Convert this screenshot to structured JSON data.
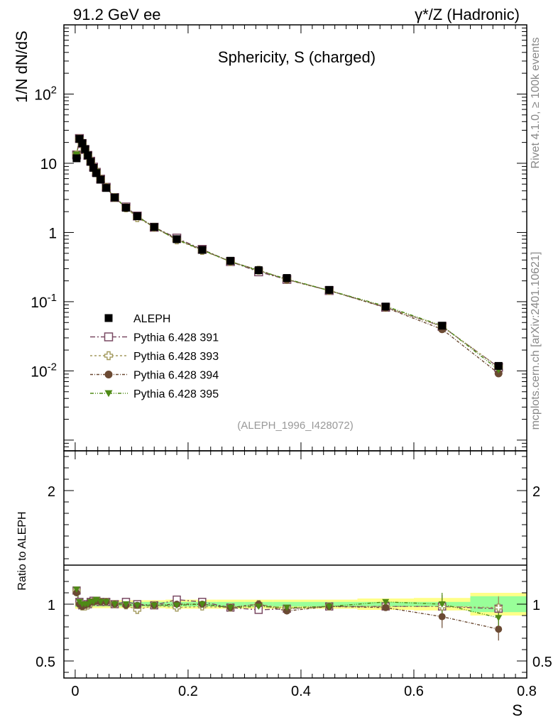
{
  "header": {
    "left": "91.2 GeV ee",
    "right": "γ*/Z (Hadronic)"
  },
  "side_labels": {
    "rivet": "Rivet 4.1.0, ≥ 100k events",
    "mcplots": "mcplots.cern.ch [arXiv:2401.10621]"
  },
  "colors": {
    "aleph": "#000000",
    "p391": "#7a4a63",
    "p393": "#a39a5e",
    "p394": "#6b4a33",
    "p395": "#4e8a16",
    "band_inner": "#99ff99",
    "band_outer": "#ffff88"
  },
  "chart_data": [
    {
      "type": "line",
      "title": "Sphericity, S (charged)",
      "ylabel": "1/N  dN/dS",
      "xlabel": "S",
      "yscale": "log",
      "xlim": [
        -0.02,
        0.8
      ],
      "ylim": [
        0.0007,
        1000
      ],
      "ytick_labels": [
        "10^-2",
        "10^-1",
        "1",
        "10",
        "10^2"
      ],
      "xtick_labels": [
        "0",
        "0.2",
        "0.4",
        "0.6",
        "0.8"
      ],
      "annotation": "(ALEPH_1996_I428072)",
      "legend_position": "bottom-left",
      "x": [
        0.0025,
        0.0075,
        0.0125,
        0.0175,
        0.0225,
        0.0275,
        0.0325,
        0.0375,
        0.045,
        0.055,
        0.07,
        0.09,
        0.11,
        0.14,
        0.18,
        0.225,
        0.275,
        0.325,
        0.375,
        0.45,
        0.55,
        0.65,
        0.75
      ],
      "series": [
        {
          "name": "ALEPH",
          "key": "aleph",
          "marker": "square-filled",
          "values": [
            11.8,
            22.5,
            19.5,
            16.0,
            13.0,
            10.5,
            8.6,
            7.2,
            5.8,
            4.4,
            3.2,
            2.28,
            1.72,
            1.2,
            0.8,
            0.56,
            0.39,
            0.285,
            0.22,
            0.148,
            0.085,
            0.045,
            0.0118
          ]
        },
        {
          "name": "Pythia 6.428 391",
          "key": "p391",
          "marker": "square-open",
          "values": [
            13.2,
            22.8,
            19.3,
            15.8,
            13.0,
            10.7,
            8.8,
            7.4,
            5.9,
            4.5,
            3.2,
            2.34,
            1.73,
            1.19,
            0.83,
            0.57,
            0.38,
            0.27,
            0.21,
            0.145,
            0.083,
            0.044,
            0.0113
          ]
        },
        {
          "name": "Pythia 6.428 393",
          "key": "p393",
          "marker": "cross-open",
          "values": [
            13.2,
            22.4,
            19.1,
            15.7,
            12.9,
            10.6,
            8.8,
            7.4,
            5.9,
            4.5,
            3.2,
            2.27,
            1.64,
            1.19,
            0.78,
            0.55,
            0.38,
            0.285,
            0.21,
            0.145,
            0.083,
            0.044,
            0.0114
          ]
        },
        {
          "name": "Pythia 6.428 394",
          "key": "p394",
          "marker": "circle-filled",
          "values": [
            13.0,
            22.6,
            19.2,
            15.8,
            13.0,
            10.7,
            8.8,
            7.4,
            5.9,
            4.5,
            3.2,
            2.27,
            1.71,
            1.19,
            0.8,
            0.56,
            0.38,
            0.285,
            0.208,
            0.145,
            0.082,
            0.04,
            0.0092
          ]
        },
        {
          "name": "Pythia 6.428 395",
          "key": "p395",
          "marker": "triangle-down-filled",
          "values": [
            13.3,
            22.8,
            19.4,
            16.0,
            13.0,
            10.7,
            8.8,
            7.5,
            5.9,
            4.5,
            3.2,
            2.29,
            1.71,
            1.19,
            0.79,
            0.56,
            0.38,
            0.28,
            0.213,
            0.145,
            0.086,
            0.045,
            0.0104
          ]
        }
      ]
    },
    {
      "type": "line",
      "title": "",
      "ylabel": "Ratio to ALEPH",
      "xlabel": "S",
      "yscale": "linear",
      "xlim": [
        -0.02,
        0.8
      ],
      "ylim": [
        0.35,
        2.35
      ],
      "ytick_labels": [
        "0.5",
        "1",
        "2"
      ],
      "band_edges": [
        0,
        0.005,
        0.01,
        0.015,
        0.02,
        0.025,
        0.03,
        0.035,
        0.04,
        0.05,
        0.06,
        0.08,
        0.1,
        0.12,
        0.16,
        0.2,
        0.25,
        0.3,
        0.35,
        0.4,
        0.5,
        0.6,
        0.7,
        0.8
      ],
      "band_inner_halfwidth": [
        0.025,
        0.02,
        0.02,
        0.02,
        0.02,
        0.02,
        0.02,
        0.02,
        0.02,
        0.02,
        0.02,
        0.02,
        0.02,
        0.02,
        0.02,
        0.02,
        0.02,
        0.02,
        0.02,
        0.02,
        0.02,
        0.02,
        0.07
      ],
      "band_outer_halfwidth": [
        0.04,
        0.035,
        0.035,
        0.035,
        0.035,
        0.035,
        0.035,
        0.035,
        0.035,
        0.035,
        0.035,
        0.035,
        0.035,
        0.035,
        0.04,
        0.04,
        0.04,
        0.04,
        0.04,
        0.04,
        0.05,
        0.055,
        0.1
      ],
      "x": [
        0.0025,
        0.0075,
        0.0125,
        0.0175,
        0.0225,
        0.0275,
        0.0325,
        0.0375,
        0.045,
        0.055,
        0.07,
        0.09,
        0.11,
        0.14,
        0.18,
        0.225,
        0.275,
        0.325,
        0.375,
        0.45,
        0.55,
        0.65,
        0.75
      ],
      "series": [
        {
          "name": "Pythia 6.428 391",
          "key": "p391",
          "marker": "square-open",
          "values": [
            1.12,
            1.02,
            0.99,
            0.99,
            1.0,
            1.02,
            1.03,
            1.03,
            1.02,
            1.02,
            1.0,
            1.02,
            1.0,
            0.99,
            1.04,
            1.02,
            0.97,
            0.95,
            0.96,
            0.98,
            0.98,
            0.98,
            0.96
          ]
        },
        {
          "name": "Pythia 6.428 393",
          "key": "p393",
          "marker": "cross-open",
          "values": [
            1.12,
            1.0,
            0.98,
            0.98,
            0.99,
            1.01,
            1.02,
            1.03,
            1.02,
            1.02,
            1.0,
            0.99,
            0.95,
            0.99,
            0.97,
            0.98,
            0.97,
            1.0,
            0.96,
            0.98,
            0.98,
            0.98,
            0.97
          ]
        },
        {
          "name": "Pythia 6.428 394",
          "key": "p394",
          "marker": "circle-filled",
          "values": [
            1.1,
            1.0,
            0.98,
            0.99,
            1.0,
            1.02,
            1.02,
            1.03,
            1.02,
            1.02,
            1.0,
            0.99,
            0.99,
            0.99,
            1.0,
            1.0,
            0.97,
            1.0,
            0.94,
            0.98,
            0.97,
            0.89,
            0.78
          ]
        },
        {
          "name": "Pythia 6.428 395",
          "key": "p395",
          "marker": "triangle-down-filled",
          "values": [
            1.13,
            1.02,
            1.0,
            1.0,
            1.0,
            1.02,
            1.02,
            1.04,
            1.02,
            1.02,
            1.0,
            1.0,
            0.99,
            0.99,
            0.99,
            1.0,
            0.97,
            0.98,
            0.97,
            0.98,
            1.02,
            1.0,
            0.88
          ]
        }
      ]
    }
  ]
}
